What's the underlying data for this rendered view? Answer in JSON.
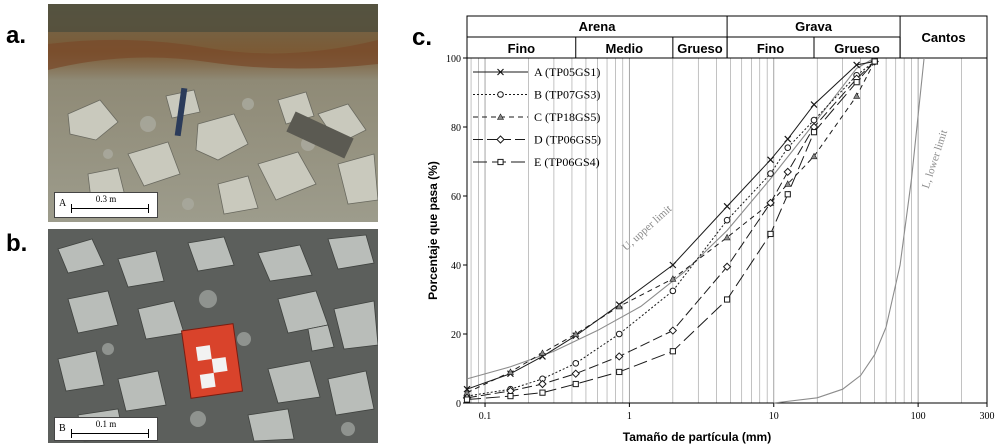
{
  "panels": {
    "a": {
      "label": "a.",
      "scale_letter": "A",
      "scale_text": "0.3 m"
    },
    "b": {
      "label": "b.",
      "scale_letter": "B",
      "scale_text": "0.1 m"
    },
    "c": {
      "label": "c."
    }
  },
  "colors": {
    "series": "#1a1a1a",
    "limits": "#8c8c8c",
    "grid": "#9a9a9a",
    "frame": "#000000"
  },
  "chart_data": {
    "type": "line",
    "x_scale": "log",
    "xlabel": "Tamaño de partícula (mm)",
    "ylabel": "Porcentaje que pasa (%)",
    "xlim": [
      0.075,
      300
    ],
    "ylim": [
      0,
      100
    ],
    "x_ticks": [
      {
        "v": 0.1,
        "label": "0.1"
      },
      {
        "v": 1,
        "label": "1"
      },
      {
        "v": 10,
        "label": "10"
      },
      {
        "v": 100,
        "label": "100"
      },
      {
        "v": 300,
        "label": "300"
      }
    ],
    "y_ticks": [
      0,
      20,
      40,
      60,
      80,
      100
    ],
    "header": {
      "top": [
        {
          "label": "Arena",
          "from": 0.075,
          "to": 4.75
        },
        {
          "label": "Grava",
          "from": 4.75,
          "to": 75
        },
        {
          "label": "Cantos",
          "from": 75,
          "to": 300
        }
      ],
      "sub": [
        {
          "label": "Fino",
          "from": 0.075,
          "to": 0.425
        },
        {
          "label": "Medio",
          "from": 0.425,
          "to": 2
        },
        {
          "label": "Grueso",
          "from": 2,
          "to": 4.75
        },
        {
          "label": "Fino",
          "from": 4.75,
          "to": 19
        },
        {
          "label": "Grueso",
          "from": 19,
          "to": 75
        }
      ]
    },
    "series": [
      {
        "name": "A (TP05GS1)",
        "dash": "",
        "marker": "x",
        "x": [
          0.075,
          0.15,
          0.25,
          0.425,
          0.85,
          2,
          4.75,
          9.5,
          12.5,
          19,
          37.5,
          50
        ],
        "y": [
          4,
          8.5,
          13.5,
          19.5,
          28.5,
          40,
          57,
          70.5,
          76.5,
          86.5,
          98,
          99
        ]
      },
      {
        "name": "B (TP07GS3)",
        "dash": "2,2",
        "marker": "o",
        "x": [
          0.075,
          0.15,
          0.25,
          0.425,
          0.85,
          2,
          4.75,
          9.5,
          12.5,
          19,
          37.5,
          50
        ],
        "y": [
          2,
          4,
          7,
          11.5,
          20,
          32.5,
          53,
          66.5,
          74,
          82,
          95,
          99
        ]
      },
      {
        "name": "C (TP18GS5)",
        "dash": "5,4",
        "marker": "^",
        "x": [
          0.075,
          0.15,
          0.25,
          0.425,
          0.85,
          2,
          4.75,
          9.5,
          12.5,
          19,
          37.5,
          50
        ],
        "y": [
          3,
          9,
          14.5,
          20,
          28,
          36,
          48,
          58,
          63.5,
          71.5,
          89,
          99
        ]
      },
      {
        "name": "D (TP06GS5)",
        "dash": "10,4",
        "marker": "d",
        "x": [
          0.075,
          0.15,
          0.25,
          0.425,
          0.85,
          2,
          4.75,
          9.5,
          12.5,
          19,
          37.5,
          50
        ],
        "y": [
          1.5,
          3.5,
          5.5,
          8.5,
          13.5,
          21,
          39.5,
          58,
          67,
          80,
          94,
          99
        ]
      },
      {
        "name": "E (TP06GS4)",
        "dash": "14,5",
        "marker": "s",
        "x": [
          0.075,
          0.15,
          0.25,
          0.425,
          0.85,
          2,
          4.75,
          9.5,
          12.5,
          19,
          37.5,
          50
        ],
        "y": [
          1,
          2,
          3,
          5.5,
          9,
          15,
          30,
          49,
          60.5,
          78.5,
          93,
          99
        ]
      }
    ],
    "limits": [
      {
        "name": "U, upper limit",
        "x": [
          0.075,
          0.15,
          0.3,
          0.6,
          1.2,
          2.4,
          4.75,
          9.5,
          19,
          37.5,
          50
        ],
        "y": [
          7,
          10.5,
          15,
          21,
          28,
          38,
          50,
          65,
          81,
          97,
          100
        ]
      },
      {
        "name": "L, lower limit",
        "x": [
          10,
          20,
          30,
          40,
          50,
          60,
          75,
          90,
          110
        ],
        "y": [
          0,
          1.5,
          4,
          8,
          14,
          22,
          40,
          65,
          100
        ]
      }
    ]
  }
}
